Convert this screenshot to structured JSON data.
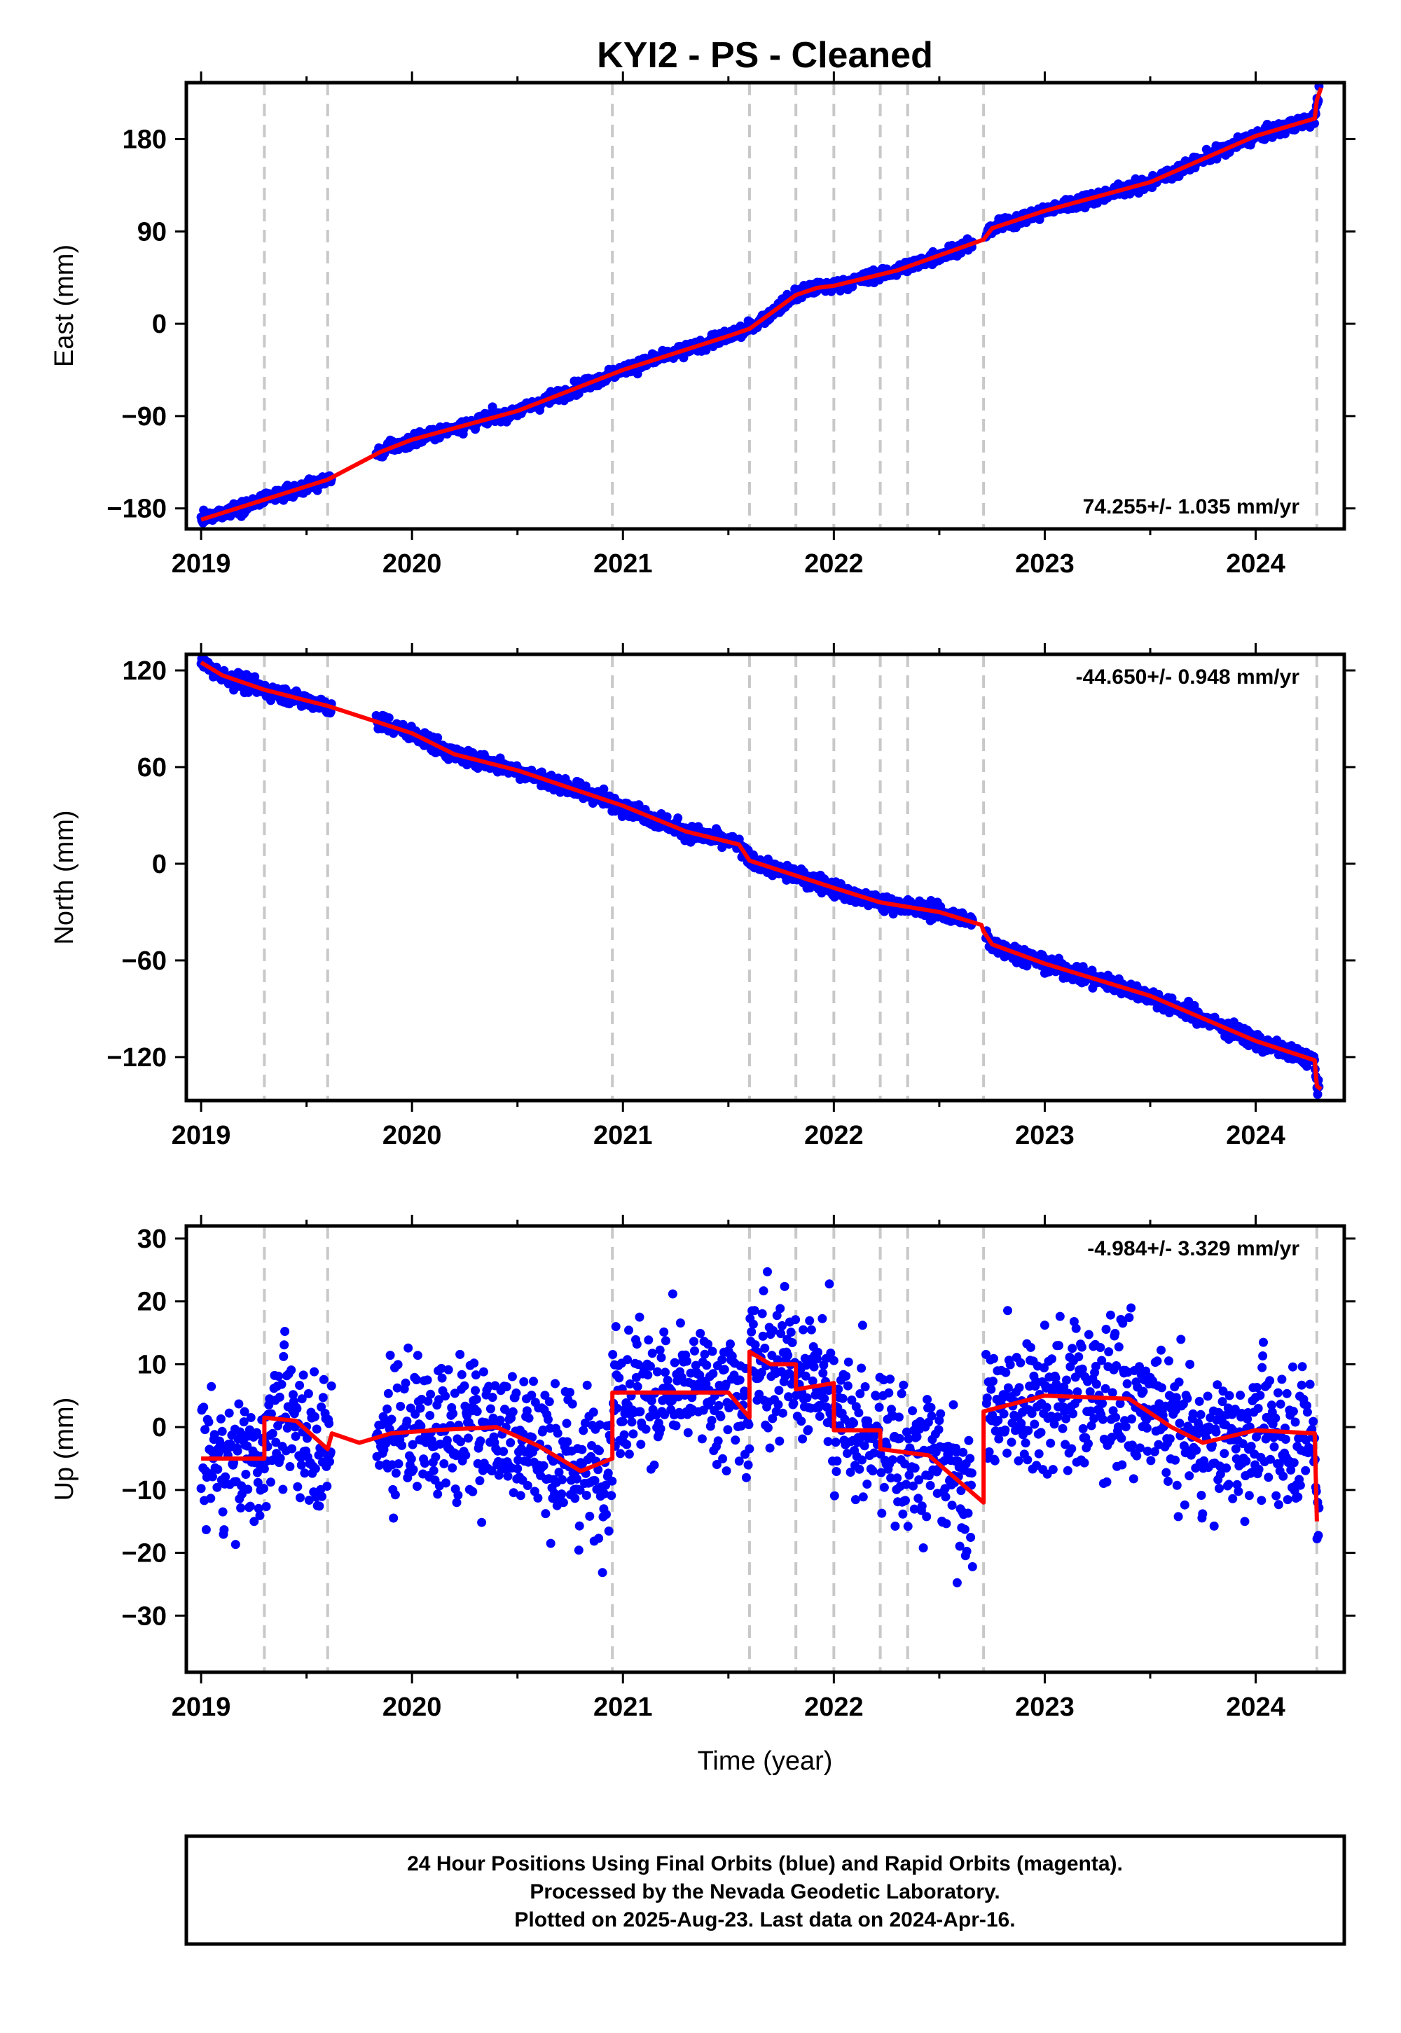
{
  "chart_data": {
    "type": "scatter",
    "title": "KYI2  - PS - Cleaned",
    "xlabel": "Time (year)",
    "xlim": [
      2018.93,
      2024.42
    ],
    "x_ticks": [
      "2019",
      "2020",
      "2021",
      "2022",
      "2023",
      "2024"
    ],
    "grid": false,
    "breaks": [
      2019.3,
      2019.6,
      2020.95,
      2021.6,
      2021.82,
      2022.0,
      2022.22,
      2022.35,
      2022.71,
      2024.29
    ],
    "colors": {
      "data": "#0000ff",
      "model": "#ff0000",
      "breaks": "#c8c8c8"
    },
    "panels": [
      {
        "name": "east",
        "ylabel": "East (mm)",
        "ylim": [
          -200,
          235
        ],
        "yticks": [
          -180,
          -90,
          0,
          90,
          180
        ],
        "rate_text": "74.255+/- 1.035 mm/yr",
        "rate_position": "bottom-right",
        "model": [
          [
            2019.0,
            -191
          ],
          [
            2019.6,
            -152
          ],
          [
            2019.85,
            -125
          ],
          [
            2020.0,
            -113
          ],
          [
            2020.5,
            -85
          ],
          [
            2021.0,
            -45
          ],
          [
            2021.5,
            -12
          ],
          [
            2021.6,
            -5
          ],
          [
            2021.82,
            28
          ],
          [
            2021.92,
            35
          ],
          [
            2022.0,
            37
          ],
          [
            2022.3,
            52
          ],
          [
            2022.71,
            82
          ],
          [
            2022.75,
            93
          ],
          [
            2023.0,
            110
          ],
          [
            2023.5,
            138
          ],
          [
            2024.0,
            183
          ],
          [
            2024.28,
            200
          ],
          [
            2024.29,
            218
          ],
          [
            2024.31,
            230
          ]
        ],
        "noise": 3.0
      },
      {
        "name": "north",
        "ylabel": "North (mm)",
        "ylim": [
          -147,
          130
        ],
        "yticks": [
          -120,
          -60,
          0,
          60,
          120
        ],
        "rate_text": "-44.650+/- 0.948 mm/yr",
        "rate_position": "top-right",
        "model": [
          [
            2019.0,
            125
          ],
          [
            2019.1,
            117
          ],
          [
            2019.3,
            108
          ],
          [
            2019.6,
            98
          ],
          [
            2020.0,
            81
          ],
          [
            2020.2,
            68
          ],
          [
            2020.5,
            58
          ],
          [
            2021.0,
            36
          ],
          [
            2021.3,
            20
          ],
          [
            2021.55,
            12
          ],
          [
            2021.6,
            2
          ],
          [
            2022.0,
            -15
          ],
          [
            2022.22,
            -24
          ],
          [
            2022.5,
            -30
          ],
          [
            2022.7,
            -38
          ],
          [
            2022.71,
            -42
          ],
          [
            2022.75,
            -50
          ],
          [
            2023.0,
            -62
          ],
          [
            2023.5,
            -82
          ],
          [
            2024.0,
            -110
          ],
          [
            2024.28,
            -122
          ],
          [
            2024.29,
            -138
          ],
          [
            2024.31,
            -140
          ]
        ],
        "noise": 2.5
      },
      {
        "name": "up",
        "ylabel": "Up (mm)",
        "ylim": [
          -39,
          32
        ],
        "yticks": [
          -30,
          -20,
          -10,
          0,
          10,
          20,
          30
        ],
        "rate_text": "-4.984+/- 3.329 mm/yr",
        "rate_position": "top-right",
        "model": [
          [
            2019.0,
            -5
          ],
          [
            2019.3,
            -5
          ],
          [
            2019.3,
            1.5
          ],
          [
            2019.45,
            1
          ],
          [
            2019.55,
            -2
          ],
          [
            2019.6,
            -3.5
          ],
          [
            2019.62,
            -1
          ],
          [
            2019.75,
            -2.5
          ],
          [
            2019.9,
            -1
          ],
          [
            2020.1,
            -0.5
          ],
          [
            2020.4,
            0
          ],
          [
            2020.6,
            -3
          ],
          [
            2020.8,
            -7
          ],
          [
            2020.95,
            -5
          ],
          [
            2020.95,
            5.5
          ],
          [
            2021.5,
            5.5
          ],
          [
            2021.6,
            1.5
          ],
          [
            2021.6,
            12
          ],
          [
            2021.7,
            10
          ],
          [
            2021.82,
            10
          ],
          [
            2021.82,
            6
          ],
          [
            2022.0,
            7
          ],
          [
            2022.0,
            -0.5
          ],
          [
            2022.22,
            -0.5
          ],
          [
            2022.22,
            -3.5
          ],
          [
            2022.45,
            -4.5
          ],
          [
            2022.71,
            -12
          ],
          [
            2022.71,
            2.5
          ],
          [
            2023.0,
            5
          ],
          [
            2023.4,
            4.5
          ],
          [
            2023.6,
            0
          ],
          [
            2023.75,
            -2.5
          ],
          [
            2024.0,
            -0.5
          ],
          [
            2024.28,
            -1
          ],
          [
            2024.29,
            -15
          ]
        ],
        "noise": 5.5
      }
    ],
    "n_points": 1750,
    "data_start": 2019.0,
    "data_end": 2024.3
  },
  "footer": {
    "line1": "24 Hour Positions Using Final Orbits (blue) and Rapid Orbits (magenta).",
    "line2": "Processed by the Nevada Geodetic Laboratory.",
    "line3": "Plotted on 2025-Aug-23. Last data on 2024-Apr-16."
  }
}
